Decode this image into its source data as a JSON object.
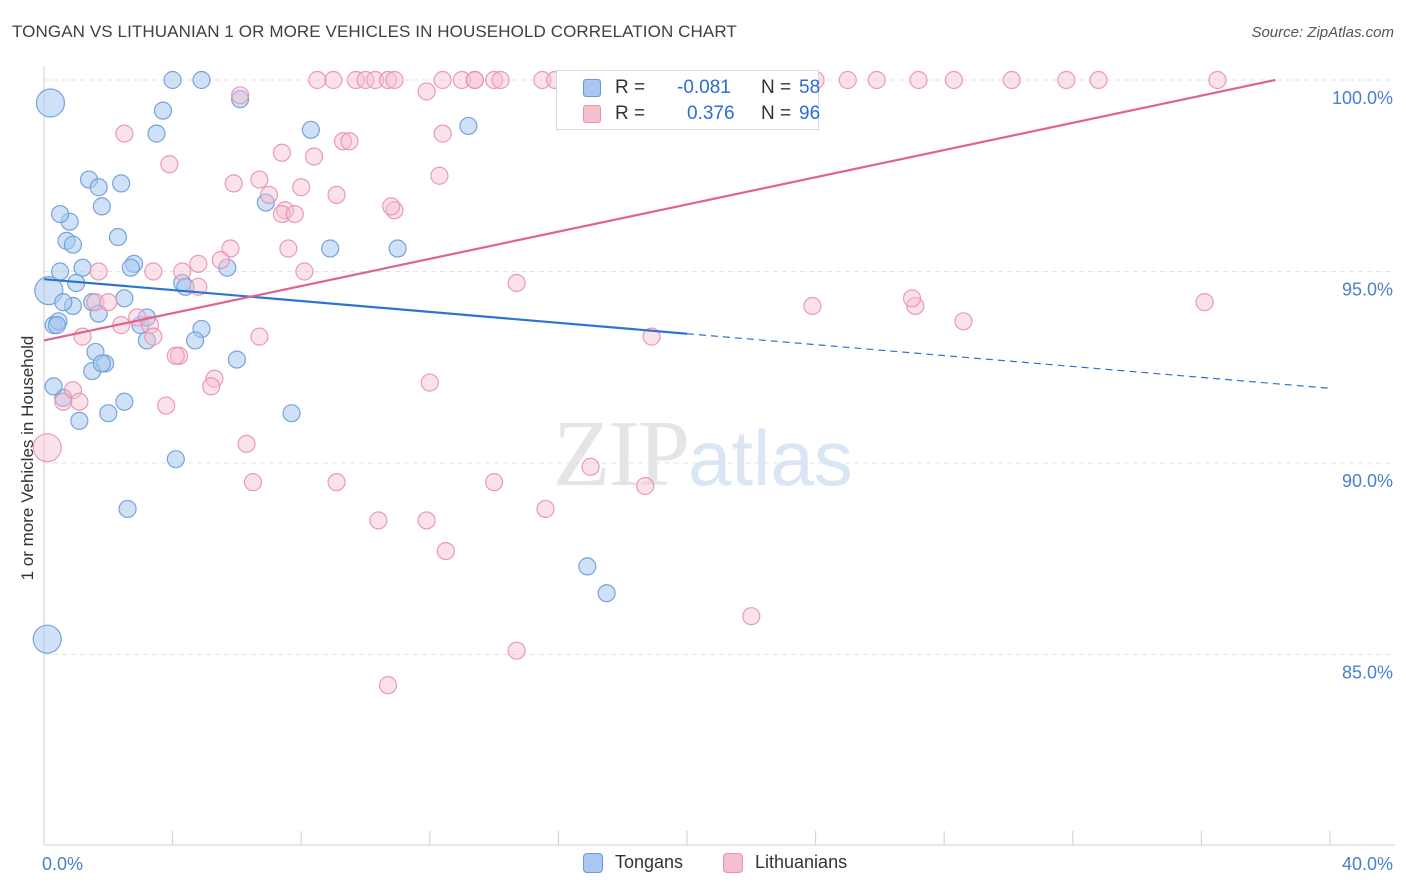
{
  "title": "TONGAN VS LITHUANIAN 1 OR MORE VEHICLES IN HOUSEHOLD CORRELATION CHART",
  "source": "Source: ZipAtlas.com",
  "watermark": {
    "zip": "ZIP",
    "atlas": "atlas"
  },
  "legend": {
    "tongans": {
      "r_label": "R =",
      "r_value": "-0.081",
      "n_label": "N =",
      "n_value": "58"
    },
    "lithuanians": {
      "r_label": "R =",
      "r_value": "0.376",
      "n_label": "N =",
      "n_value": "96"
    }
  },
  "bottom_legend": {
    "tongans": "Tongans",
    "lithuanians": "Lithuanians"
  },
  "colors": {
    "tongans_fill": "#a8c8ef",
    "tongans_stroke": "#6a9ad8",
    "tongans_line": "#2f73d1",
    "lithuanians_fill": "#f6bfd0",
    "lithuanians_stroke": "#e890ad",
    "lithuanians_line": "#e0628f",
    "tick_label": "#4a7fcf",
    "grid": "#e3e3e3"
  },
  "chart_data": {
    "type": "scatter",
    "title": "TONGAN VS LITHUANIAN 1 OR MORE VEHICLES IN HOUSEHOLD CORRELATION CHART",
    "xlabel": "",
    "ylabel": "1 or more Vehicles in Household",
    "xlim": [
      0,
      40
    ],
    "ylim": [
      80,
      100.6
    ],
    "x_tick_labels": [
      "0.0%",
      "40.0%"
    ],
    "y_ticks": [
      85,
      90,
      95,
      100
    ],
    "y_tick_labels": [
      "85.0%",
      "90.0%",
      "95.0%",
      "100.0%"
    ],
    "grid": true,
    "legend_position": "top-center",
    "series": [
      {
        "name": "Tongans",
        "x": [
          0.15,
          0.3,
          0.45,
          0.9,
          1.5,
          4.0,
          4.9,
          3.7,
          6.1,
          3.5,
          8.3,
          13.2,
          1.4,
          2.4,
          1.7,
          1.8,
          0.8,
          2.3,
          6.9,
          0.7,
          8.9,
          11.0,
          2.8,
          2.7,
          5.7,
          4.3,
          4.4,
          1.2,
          0.5,
          1.0,
          0.6,
          0.4,
          3.0,
          1.7,
          3.2,
          2.5,
          4.9,
          4.7,
          1.6,
          3.2,
          1.5,
          1.9,
          6.0,
          1.8,
          0.6,
          2.5,
          2.0,
          7.7,
          1.1,
          4.1,
          2.6,
          16.9,
          17.5,
          0.1,
          0.2,
          0.5,
          0.9,
          0.3
        ],
        "y": [
          94.5,
          93.6,
          93.7,
          94.1,
          94.2,
          100.0,
          100.0,
          99.2,
          99.5,
          98.6,
          98.7,
          98.8,
          97.4,
          97.3,
          97.2,
          96.7,
          96.3,
          95.9,
          96.8,
          95.8,
          95.6,
          95.6,
          95.2,
          95.1,
          95.1,
          94.7,
          94.6,
          95.1,
          95.0,
          94.7,
          94.2,
          93.6,
          93.6,
          93.9,
          93.8,
          94.3,
          93.5,
          93.2,
          92.9,
          93.2,
          92.4,
          92.6,
          92.7,
          92.6,
          91.7,
          91.6,
          91.3,
          91.3,
          91.1,
          90.1,
          88.8,
          87.3,
          86.6,
          85.4,
          99.4,
          96.5,
          95.7,
          92.0
        ],
        "r": "-0.081",
        "n": "58"
      },
      {
        "name": "Lithuanians",
        "x": [
          9.0,
          9.7,
          10.0,
          10.3,
          10.7,
          12.4,
          13.0,
          13.4,
          14.0,
          15.5,
          15.9,
          18.6,
          19.3,
          21.1,
          22.2,
          22.9,
          24.0,
          25.0,
          25.9,
          27.2,
          28.3,
          30.1,
          31.8,
          32.8,
          36.5,
          14.2,
          13.4,
          8.5,
          10.9,
          6.1,
          7.4,
          11.9,
          8.4,
          9.3,
          2.5,
          3.9,
          9.5,
          12.4,
          8.0,
          6.7,
          5.9,
          7.0,
          9.1,
          7.5,
          10.9,
          10.8,
          7.4,
          7.8,
          7.6,
          5.8,
          5.5,
          4.8,
          3.4,
          4.3,
          1.7,
          8.1,
          12.3,
          4.8,
          14.7,
          27.1,
          23.9,
          27.0,
          28.6,
          18.9,
          36.1,
          1.6,
          2.0,
          1.2,
          2.4,
          2.9,
          3.3,
          3.4,
          4.2,
          4.1,
          6.7,
          5.3,
          12.0,
          5.2,
          6.3,
          0.9,
          0.6,
          1.1,
          3.8,
          0.1,
          6.5,
          9.1,
          14.0,
          17.0,
          11.9,
          18.7,
          15.6,
          12.5,
          22.0,
          14.7,
          10.7,
          10.4
        ],
        "y": [
          100.0,
          100.0,
          100.0,
          100.0,
          100.0,
          100.0,
          100.0,
          100.0,
          100.0,
          100.0,
          100.0,
          100.0,
          100.0,
          100.0,
          100.0,
          100.0,
          100.0,
          100.0,
          100.0,
          100.0,
          100.0,
          100.0,
          100.0,
          100.0,
          100.0,
          100.0,
          100.0,
          100.0,
          100.0,
          99.6,
          98.1,
          99.7,
          98.0,
          98.4,
          98.6,
          97.8,
          98.4,
          98.6,
          97.2,
          97.4,
          97.3,
          97.0,
          97.0,
          96.6,
          96.6,
          96.7,
          96.5,
          96.5,
          95.6,
          95.6,
          95.3,
          95.2,
          95.0,
          95.0,
          95.0,
          95.0,
          97.5,
          94.6,
          94.7,
          94.1,
          94.1,
          94.3,
          93.7,
          93.3,
          94.2,
          94.2,
          94.2,
          93.3,
          93.6,
          93.8,
          93.6,
          93.3,
          92.8,
          92.8,
          93.3,
          92.2,
          92.1,
          92.0,
          90.5,
          91.9,
          91.6,
          91.6,
          91.5,
          90.4,
          89.5,
          89.5,
          89.5,
          89.9,
          88.5,
          89.4,
          88.8,
          87.7,
          86.0,
          85.1,
          84.2,
          88.5
        ],
        "r": "0.376",
        "n": "96"
      }
    ],
    "trend_lines": [
      {
        "name": "Tongans",
        "x_start": 0,
        "y_start": 94.8,
        "x_end_solid": 20,
        "x_end": 40,
        "y_end": 91.95
      },
      {
        "name": "Lithuanians",
        "x_start": 0,
        "y_start": 93.2,
        "x_end": 38.3,
        "y_end": 100.0
      }
    ]
  }
}
